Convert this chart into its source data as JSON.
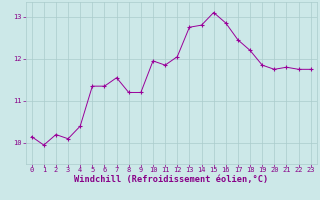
{
  "x": [
    0,
    1,
    2,
    3,
    4,
    5,
    6,
    7,
    8,
    9,
    10,
    11,
    12,
    13,
    14,
    15,
    16,
    17,
    18,
    19,
    20,
    21,
    22,
    23
  ],
  "y": [
    10.15,
    9.95,
    10.2,
    10.1,
    10.4,
    11.35,
    11.35,
    11.55,
    11.2,
    11.2,
    11.95,
    11.85,
    12.05,
    12.75,
    12.8,
    13.1,
    12.85,
    12.45,
    12.2,
    11.85,
    11.75,
    11.8,
    11.75,
    11.75
  ],
  "line_color": "#990099",
  "marker": "+",
  "marker_color": "#990099",
  "bg_color": "#cce8e8",
  "grid_color": "#aacccc",
  "xlabel": "Windchill (Refroidissement éolien,°C)",
  "xlabel_color": "#880088",
  "tick_color": "#880088",
  "ylim": [
    9.5,
    13.35
  ],
  "xlim": [
    -0.5,
    23.5
  ],
  "yticks": [
    10,
    11,
    12,
    13
  ],
  "xticks": [
    0,
    1,
    2,
    3,
    4,
    5,
    6,
    7,
    8,
    9,
    10,
    11,
    12,
    13,
    14,
    15,
    16,
    17,
    18,
    19,
    20,
    21,
    22,
    23
  ],
  "tick_fontsize": 5.0,
  "xlabel_fontsize": 6.2
}
